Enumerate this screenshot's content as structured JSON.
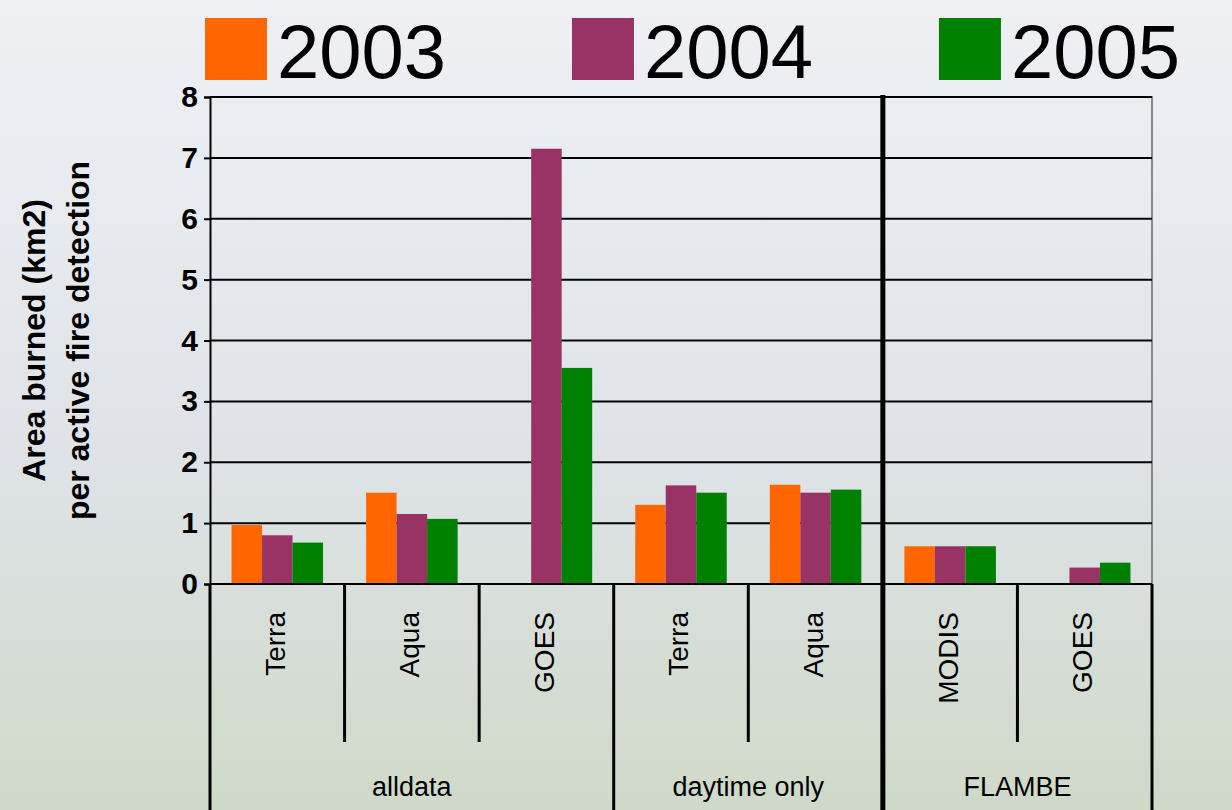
{
  "chart_data": {
    "type": "bar",
    "y_label": [
      "Area burned (km2)",
      "per active fire detection"
    ],
    "categories": [
      "Terra",
      "Aqua",
      "GOES",
      "Terra",
      "Aqua",
      "MODIS",
      "GOES"
    ],
    "category_groups": [
      "alldata",
      "alldata",
      "alldata",
      "daytime only",
      "daytime only",
      "FLAMBE",
      "FLAMBE"
    ],
    "series": [
      {
        "name": "2003",
        "color": "#ff6600",
        "values": [
          0.97,
          1.5,
          null,
          1.3,
          1.63,
          0.62,
          null
        ]
      },
      {
        "name": "2004",
        "color": "#993366",
        "values": [
          0.8,
          1.15,
          7.15,
          1.62,
          1.5,
          0.62,
          0.27
        ]
      },
      {
        "name": "2005",
        "color": "#008000",
        "values": [
          0.68,
          1.07,
          3.55,
          1.5,
          1.55,
          0.62,
          0.35
        ]
      }
    ],
    "ylim": [
      0,
      8
    ],
    "yticks": [
      0,
      1,
      2,
      3,
      4,
      5,
      6,
      7,
      8
    ],
    "grid": true,
    "legend": "top"
  }
}
